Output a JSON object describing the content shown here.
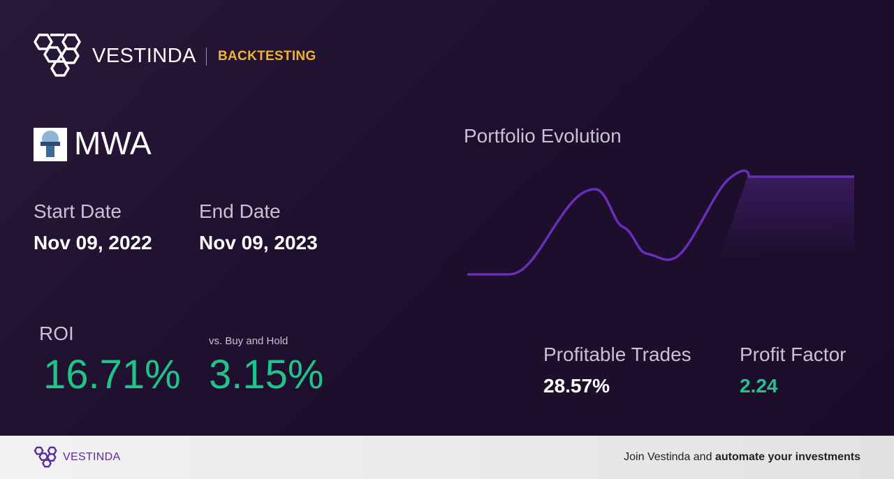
{
  "header": {
    "brand": "VESTINDA",
    "section": "BACKTESTING"
  },
  "ticker": "MWA",
  "start_date": {
    "label": "Start Date",
    "value": "Nov 09, 2022"
  },
  "end_date": {
    "label": "End Date",
    "value": "Nov 09, 2023"
  },
  "roi": {
    "label": "ROI",
    "value": "16.71%"
  },
  "vs_buy_and_hold": {
    "label": "vs. Buy and Hold",
    "value": "3.15%"
  },
  "chart": {
    "title": "Portfolio Evolution"
  },
  "profitable_trades": {
    "label": "Profitable Trades",
    "value": "28.57%"
  },
  "profit_factor": {
    "label": "Profit Factor",
    "value": "2.24"
  },
  "footer": {
    "brand": "VESTINDA",
    "text": "Join Vestinda and",
    "emphasis": "automate your investments"
  }
}
